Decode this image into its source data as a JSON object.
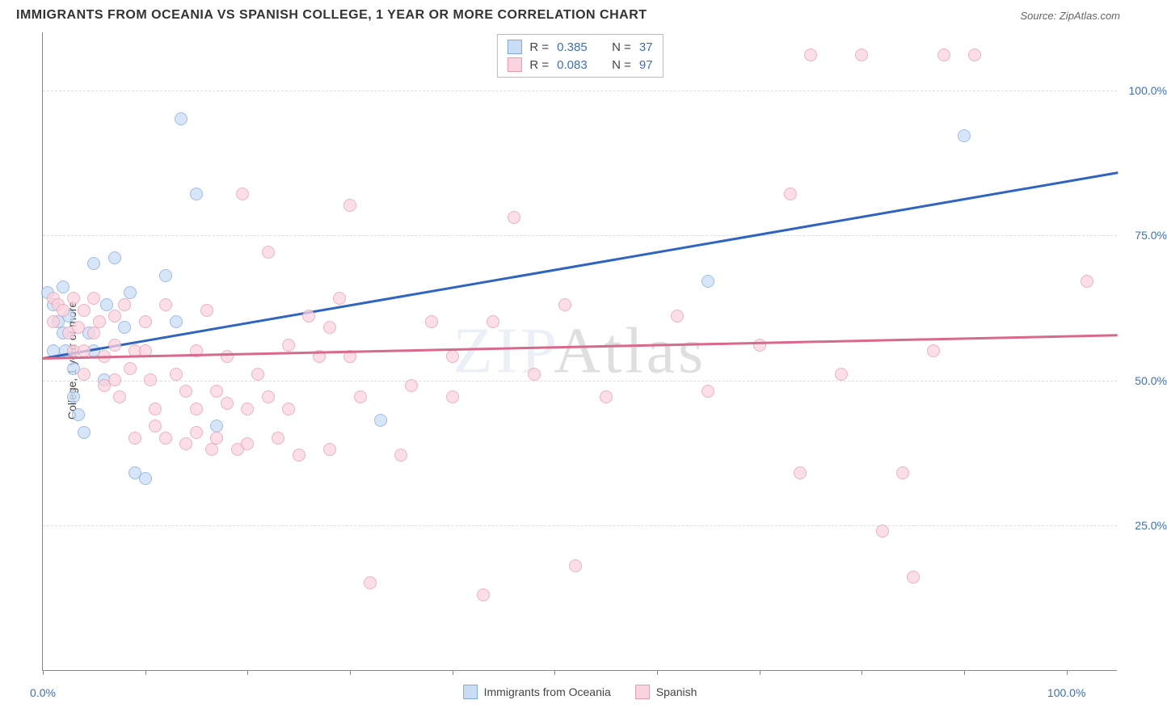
{
  "title": "IMMIGRANTS FROM OCEANIA VS SPANISH COLLEGE, 1 YEAR OR MORE CORRELATION CHART",
  "source": "Source: ZipAtlas.com",
  "watermark": {
    "pre": "ZIP",
    "post": "Atlas"
  },
  "y_axis_title": "College, 1 year or more",
  "axes": {
    "xlim": [
      0,
      105
    ],
    "ylim": [
      0,
      110
    ],
    "x_ticks": [
      0,
      10,
      20,
      30,
      40,
      50,
      60,
      70,
      80,
      90,
      100
    ],
    "x_labels": [
      {
        "v": 0,
        "t": "0.0%"
      },
      {
        "v": 100,
        "t": "100.0%"
      }
    ],
    "y_grid": [
      25,
      50,
      75,
      100
    ],
    "y_labels": [
      {
        "v": 25,
        "t": "25.0%"
      },
      {
        "v": 50,
        "t": "50.0%"
      },
      {
        "v": 75,
        "t": "75.0%"
      },
      {
        "v": 100,
        "t": "100.0%"
      }
    ]
  },
  "series": [
    {
      "name": "Immigrants from Oceania",
      "fill": "#c9ddf5",
      "stroke": "#7fa8de",
      "line_color": "#2f64c1",
      "R_label": "R =",
      "R": "0.385",
      "N_label": "N =",
      "N": "37",
      "trend": {
        "x1": 0,
        "y1": 54,
        "x2": 105,
        "y2": 86
      },
      "points": [
        [
          0.5,
          65
        ],
        [
          1,
          63
        ],
        [
          1,
          55
        ],
        [
          1.5,
          60
        ],
        [
          2,
          66
        ],
        [
          2,
          58
        ],
        [
          2.2,
          55
        ],
        [
          2.5,
          61
        ],
        [
          3,
          52
        ],
        [
          3,
          47
        ],
        [
          3.5,
          44
        ],
        [
          4,
          41
        ],
        [
          4.5,
          58
        ],
        [
          5,
          55
        ],
        [
          5,
          70
        ],
        [
          6,
          50
        ],
        [
          6.2,
          63
        ],
        [
          7,
          71
        ],
        [
          8,
          59
        ],
        [
          8.5,
          65
        ],
        [
          9,
          34
        ],
        [
          10,
          33
        ],
        [
          12,
          68
        ],
        [
          13,
          60
        ],
        [
          13.5,
          95
        ],
        [
          15,
          82
        ],
        [
          17,
          42
        ],
        [
          33,
          43
        ],
        [
          65,
          67
        ],
        [
          90,
          92
        ]
      ]
    },
    {
      "name": "Spanish",
      "fill": "#fbd3de",
      "stroke": "#e79ab0",
      "line_color": "#d9698a",
      "R_label": "R =",
      "R": "0.083",
      "N_label": "N =",
      "N": "97",
      "trend": {
        "x1": 0,
        "y1": 54,
        "x2": 105,
        "y2": 58
      },
      "points": [
        [
          1,
          64
        ],
        [
          1,
          60
        ],
        [
          1.5,
          63
        ],
        [
          2,
          62
        ],
        [
          2.5,
          58
        ],
        [
          3,
          64
        ],
        [
          3,
          55
        ],
        [
          3.5,
          59
        ],
        [
          4,
          62
        ],
        [
          4,
          55
        ],
        [
          4,
          51
        ],
        [
          5,
          64
        ],
        [
          5,
          58
        ],
        [
          5.5,
          60
        ],
        [
          6,
          49
        ],
        [
          6,
          54
        ],
        [
          7,
          61
        ],
        [
          7,
          56
        ],
        [
          7,
          50
        ],
        [
          7.5,
          47
        ],
        [
          8,
          63
        ],
        [
          8.5,
          52
        ],
        [
          9,
          55
        ],
        [
          9,
          40
        ],
        [
          10,
          60
        ],
        [
          10,
          55
        ],
        [
          10.5,
          50
        ],
        [
          11,
          45
        ],
        [
          11,
          42
        ],
        [
          12,
          63
        ],
        [
          12,
          40
        ],
        [
          13,
          51
        ],
        [
          14,
          48
        ],
        [
          14,
          39
        ],
        [
          15,
          55
        ],
        [
          15,
          45
        ],
        [
          15,
          41
        ],
        [
          16,
          62
        ],
        [
          16.5,
          38
        ],
        [
          17,
          48
        ],
        [
          17,
          40
        ],
        [
          18,
          54
        ],
        [
          18,
          46
        ],
        [
          19,
          38
        ],
        [
          19.5,
          82
        ],
        [
          20,
          45
        ],
        [
          20,
          39
        ],
        [
          21,
          51
        ],
        [
          22,
          47
        ],
        [
          22,
          72
        ],
        [
          23,
          40
        ],
        [
          24,
          56
        ],
        [
          24,
          45
        ],
        [
          25,
          37
        ],
        [
          26,
          61
        ],
        [
          27,
          54
        ],
        [
          28,
          38
        ],
        [
          28,
          59
        ],
        [
          29,
          64
        ],
        [
          30,
          80
        ],
        [
          30,
          54
        ],
        [
          31,
          47
        ],
        [
          32,
          15
        ],
        [
          35,
          37
        ],
        [
          36,
          49
        ],
        [
          38,
          60
        ],
        [
          40,
          54
        ],
        [
          40,
          47
        ],
        [
          43,
          13
        ],
        [
          44,
          60
        ],
        [
          46,
          78
        ],
        [
          48,
          51
        ],
        [
          51,
          63
        ],
        [
          52,
          18
        ],
        [
          55,
          47
        ],
        [
          62,
          61
        ],
        [
          65,
          48
        ],
        [
          70,
          56
        ],
        [
          73,
          82
        ],
        [
          74,
          34
        ],
        [
          75,
          106
        ],
        [
          78,
          51
        ],
        [
          80,
          106
        ],
        [
          82,
          24
        ],
        [
          84,
          34
        ],
        [
          85,
          16
        ],
        [
          87,
          55
        ],
        [
          88,
          106
        ],
        [
          91,
          106
        ],
        [
          102,
          67
        ]
      ]
    }
  ],
  "bottom_legend": [
    {
      "label": "Immigrants from Oceania",
      "fill": "#c9ddf5",
      "stroke": "#7fa8de"
    },
    {
      "label": "Spanish",
      "fill": "#fbd3de",
      "stroke": "#e79ab0"
    }
  ],
  "marker_radius": 8,
  "line_width": 2.5
}
